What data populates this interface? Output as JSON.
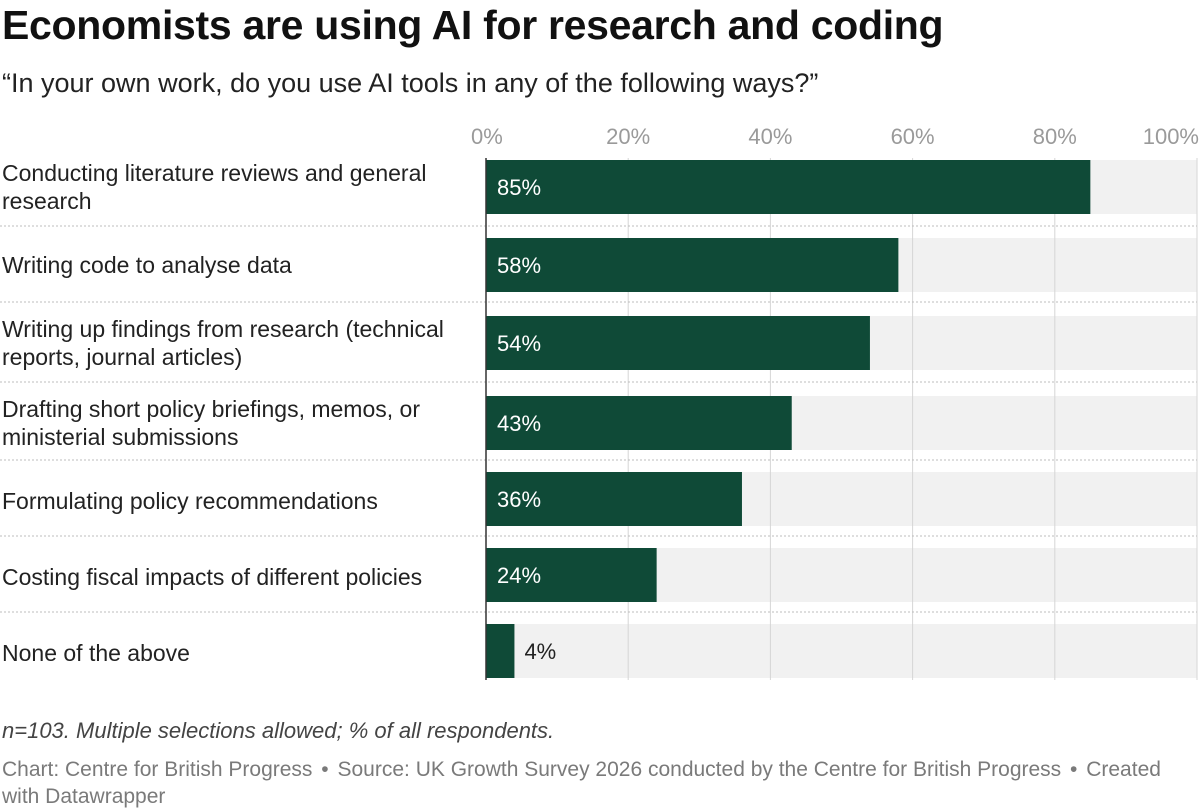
{
  "title": "Economists are using AI for research and coding",
  "subtitle": "“In your own work, do you use AI tools in any of the following ways?”",
  "colors": {
    "bar": "#0f4a37",
    "track": "#f1f1f1",
    "grid": "#d6d6d6",
    "label_inside": "#ffffff",
    "label_outside": "#222222",
    "tick": "#9a9a9a"
  },
  "chart_data": {
    "type": "bar",
    "orientation": "horizontal",
    "categories": [
      "Conducting literature reviews and general research",
      "Writing code to analyse data",
      "Writing up findings from research (technical reports, journal articles)",
      "Drafting short policy briefings, memos, or ministerial submissions",
      "Formulating policy recommendations",
      "Costing fiscal impacts of different policies",
      "None of the above"
    ],
    "values": [
      85,
      58,
      54,
      43,
      36,
      24,
      4
    ],
    "value_labels": [
      "85%",
      "58%",
      "54%",
      "43%",
      "36%",
      "24%",
      "4%"
    ],
    "xlim": [
      0,
      100
    ],
    "x_ticks": [
      0,
      20,
      40,
      60,
      80,
      100
    ],
    "x_tick_labels": [
      "0%",
      "20%",
      "40%",
      "60%",
      "80%",
      "100%"
    ],
    "grid": true
  },
  "note": "n=103. Multiple selections allowed; % of all respondents.",
  "credit": {
    "chart_by": "Chart: Centre for British Progress",
    "separator": "•",
    "source": "Source: UK Growth Survey 2026 conducted by the Centre for British Progress",
    "created_with": "Created with Datawrapper"
  }
}
